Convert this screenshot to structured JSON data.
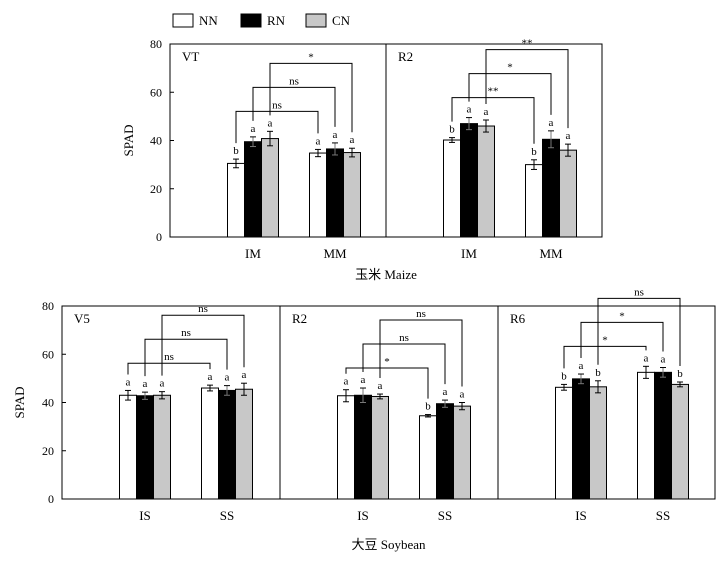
{
  "legend": [
    {
      "name": "NN",
      "color": "#ffffff"
    },
    {
      "name": "RN",
      "color": "#000000"
    },
    {
      "name": "CN",
      "color": "#c8c8c8"
    }
  ],
  "groups": [
    {
      "title": "玉米 Maize",
      "ylabel": "SPAD",
      "ylim": [
        0,
        80
      ],
      "yticks": [
        0,
        20,
        40,
        60,
        80
      ]
    },
    {
      "title": "大豆 Soybean",
      "ylabel": "SPAD",
      "ylim": [
        0,
        80
      ],
      "yticks": [
        0,
        20,
        40,
        60,
        80
      ]
    }
  ],
  "chart_data": [
    {
      "type": "bar",
      "panel": "VT",
      "group": 0,
      "categories": [
        "IM",
        "MM"
      ],
      "series": [
        {
          "name": "NN",
          "values": [
            30.5,
            34.8
          ],
          "errors": [
            1.8,
            1.5
          ],
          "labels": [
            "b",
            "a"
          ]
        },
        {
          "name": "RN",
          "values": [
            39.5,
            36.5
          ],
          "errors": [
            2.0,
            2.5
          ],
          "labels": [
            "a",
            "a"
          ]
        },
        {
          "name": "CN",
          "values": [
            40.8,
            35.0
          ],
          "errors": [
            3.0,
            1.8
          ],
          "labels": [
            "a",
            "a"
          ]
        }
      ],
      "brackets": [
        {
          "from": [
            0,
            0
          ],
          "to": [
            1,
            0
          ],
          "level": 1,
          "label": "ns"
        },
        {
          "from": [
            0,
            1
          ],
          "to": [
            1,
            1
          ],
          "level": 2,
          "label": "ns"
        },
        {
          "from": [
            0,
            2
          ],
          "to": [
            1,
            2
          ],
          "level": 3,
          "label": "*"
        }
      ]
    },
    {
      "type": "bar",
      "panel": "R2",
      "group": 0,
      "categories": [
        "IM",
        "MM"
      ],
      "series": [
        {
          "name": "NN",
          "values": [
            40.2,
            30.0
          ],
          "errors": [
            1.0,
            2.0
          ],
          "labels": [
            "b",
            "b"
          ]
        },
        {
          "name": "RN",
          "values": [
            47.0,
            40.5
          ],
          "errors": [
            2.5,
            3.5
          ],
          "labels": [
            "a",
            "a"
          ]
        },
        {
          "name": "CN",
          "values": [
            46.0,
            36.0
          ],
          "errors": [
            2.5,
            2.5
          ],
          "labels": [
            "a",
            "a"
          ]
        }
      ],
      "brackets": [
        {
          "from": [
            0,
            0
          ],
          "to": [
            1,
            0
          ],
          "level": 1,
          "label": "**"
        },
        {
          "from": [
            0,
            1
          ],
          "to": [
            1,
            1
          ],
          "level": 2,
          "label": "*"
        },
        {
          "from": [
            0,
            2
          ],
          "to": [
            1,
            2
          ],
          "level": 3,
          "label": "**"
        }
      ]
    },
    {
      "type": "bar",
      "panel": "V5",
      "group": 1,
      "categories": [
        "IS",
        "SS"
      ],
      "series": [
        {
          "name": "NN",
          "values": [
            43.0,
            46.0
          ],
          "errors": [
            2.0,
            1.2
          ],
          "labels": [
            "a",
            "a"
          ]
        },
        {
          "name": "RN",
          "values": [
            42.8,
            45.0
          ],
          "errors": [
            1.5,
            2.0
          ],
          "labels": [
            "a",
            "a"
          ]
        },
        {
          "name": "CN",
          "values": [
            43.0,
            45.5
          ],
          "errors": [
            1.5,
            2.5
          ],
          "labels": [
            "a",
            "a"
          ]
        }
      ],
      "brackets": [
        {
          "from": [
            0,
            0
          ],
          "to": [
            1,
            0
          ],
          "level": 1,
          "label": "ns"
        },
        {
          "from": [
            0,
            1
          ],
          "to": [
            1,
            1
          ],
          "level": 2,
          "label": "ns"
        },
        {
          "from": [
            0,
            2
          ],
          "to": [
            1,
            2
          ],
          "level": 3,
          "label": "ns"
        }
      ]
    },
    {
      "type": "bar",
      "panel": "R2",
      "group": 1,
      "categories": [
        "IS",
        "SS"
      ],
      "series": [
        {
          "name": "NN",
          "values": [
            42.8,
            34.5
          ],
          "errors": [
            2.5,
            0.5
          ],
          "labels": [
            "a",
            "b"
          ]
        },
        {
          "name": "RN",
          "values": [
            43.0,
            39.5
          ],
          "errors": [
            3.0,
            1.5
          ],
          "labels": [
            "a",
            "a"
          ]
        },
        {
          "name": "CN",
          "values": [
            42.5,
            38.5
          ],
          "errors": [
            1.0,
            1.5
          ],
          "labels": [
            "a",
            "a"
          ]
        }
      ],
      "brackets": [
        {
          "from": [
            0,
            0
          ],
          "to": [
            1,
            0
          ],
          "level": 1,
          "label": "*"
        },
        {
          "from": [
            0,
            1
          ],
          "to": [
            1,
            1
          ],
          "level": 2,
          "label": "ns"
        },
        {
          "from": [
            0,
            2
          ],
          "to": [
            1,
            2
          ],
          "level": 3,
          "label": "ns"
        }
      ]
    },
    {
      "type": "bar",
      "panel": "R6",
      "group": 1,
      "categories": [
        "IS",
        "SS"
      ],
      "series": [
        {
          "name": "NN",
          "values": [
            46.3,
            52.5
          ],
          "errors": [
            1.2,
            2.5
          ],
          "labels": [
            "b",
            "a"
          ]
        },
        {
          "name": "RN",
          "values": [
            49.8,
            52.5
          ],
          "errors": [
            2.0,
            2.0
          ],
          "labels": [
            "a",
            "a"
          ]
        },
        {
          "name": "CN",
          "values": [
            46.5,
            47.5
          ],
          "errors": [
            2.5,
            1.0
          ],
          "labels": [
            "b",
            "b"
          ]
        }
      ],
      "brackets": [
        {
          "from": [
            0,
            0
          ],
          "to": [
            1,
            0
          ],
          "level": 1,
          "label": "*"
        },
        {
          "from": [
            0,
            1
          ],
          "to": [
            1,
            1
          ],
          "level": 2,
          "label": "*"
        },
        {
          "from": [
            0,
            2
          ],
          "to": [
            1,
            2
          ],
          "level": 3,
          "label": "ns"
        }
      ]
    }
  ]
}
